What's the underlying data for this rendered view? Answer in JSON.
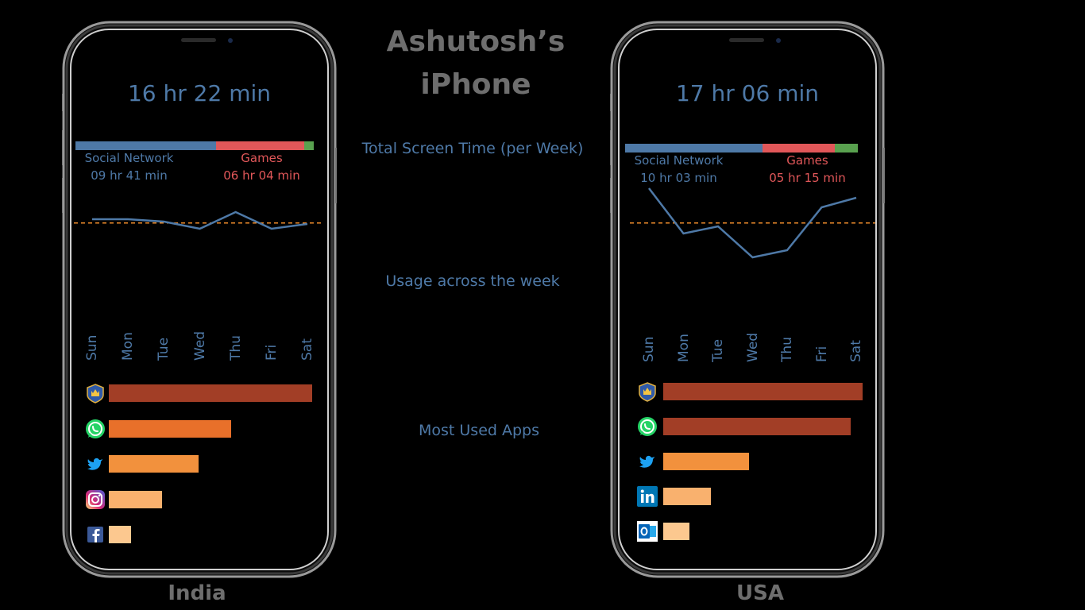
{
  "title": "Ashutosh’s iPhone",
  "labels": {
    "total": "Total Screen Time (per Week)",
    "usage": "Usage across the week",
    "apps": "Most Used Apps"
  },
  "colors": {
    "blue": "#4e79a7",
    "red": "#e15759",
    "green": "#59a14f",
    "dashed": "#f28e2b",
    "bar_dark": "#a23e26",
    "bar_orange": "#e8702a",
    "bar_orange2": "#f2913d",
    "bar_light": "#f9b16e",
    "bar_pale": "#fcc88f"
  },
  "phones": [
    {
      "country": "India",
      "total_time": "16 hr 22 min",
      "categories": [
        {
          "name": "Social Network",
          "time": "09 hr 41 min",
          "share": 0.59
        },
        {
          "name": "Games",
          "time": "06 hr 04 min",
          "share": 0.37
        },
        {
          "name": "",
          "time": "",
          "share": 0.04
        }
      ],
      "weekly": {
        "days": [
          "Sun",
          "Mon",
          "Tue",
          "Wed",
          "Thu",
          "Fri",
          "Sat"
        ],
        "values": [
          2.5,
          2.5,
          2.4,
          2.1,
          2.8,
          2.1,
          2.3
        ],
        "average": 2.34,
        "ylim": [
          0,
          4
        ]
      },
      "apps": [
        {
          "icon": "clash-royale-icon",
          "value": 1.0,
          "color": "#a23e26"
        },
        {
          "icon": "whatsapp-icon",
          "value": 0.6,
          "color": "#e8702a"
        },
        {
          "icon": "twitter-icon",
          "value": 0.44,
          "color": "#f2913d"
        },
        {
          "icon": "instagram-icon",
          "value": 0.26,
          "color": "#f9b16e"
        },
        {
          "icon": "facebook-icon",
          "value": 0.11,
          "color": "#fcc88f"
        }
      ]
    },
    {
      "country": "USA",
      "total_time": "17 hr 06 min",
      "categories": [
        {
          "name": "Social Network",
          "time": "10 hr 03 min",
          "share": 0.59
        },
        {
          "name": "Games",
          "time": "05 hr 15 min",
          "share": 0.31
        },
        {
          "name": "",
          "time": "",
          "share": 0.1
        }
      ],
      "weekly": {
        "days": [
          "Sun",
          "Mon",
          "Tue",
          "Wed",
          "Thu",
          "Fri",
          "Sat"
        ],
        "values": [
          3.9,
          2.0,
          2.3,
          1.0,
          1.3,
          3.1,
          3.5
        ],
        "average": 2.44,
        "ylim": [
          0,
          4
        ]
      },
      "apps": [
        {
          "icon": "clash-royale-icon",
          "value": 1.0,
          "color": "#a23e26"
        },
        {
          "icon": "whatsapp-icon",
          "value": 0.94,
          "color": "#a23e26"
        },
        {
          "icon": "twitter-icon",
          "value": 0.43,
          "color": "#f2913d"
        },
        {
          "icon": "linkedin-icon",
          "value": 0.24,
          "color": "#f9b16e"
        },
        {
          "icon": "outlook-icon",
          "value": 0.13,
          "color": "#fcc88f"
        }
      ]
    }
  ]
}
